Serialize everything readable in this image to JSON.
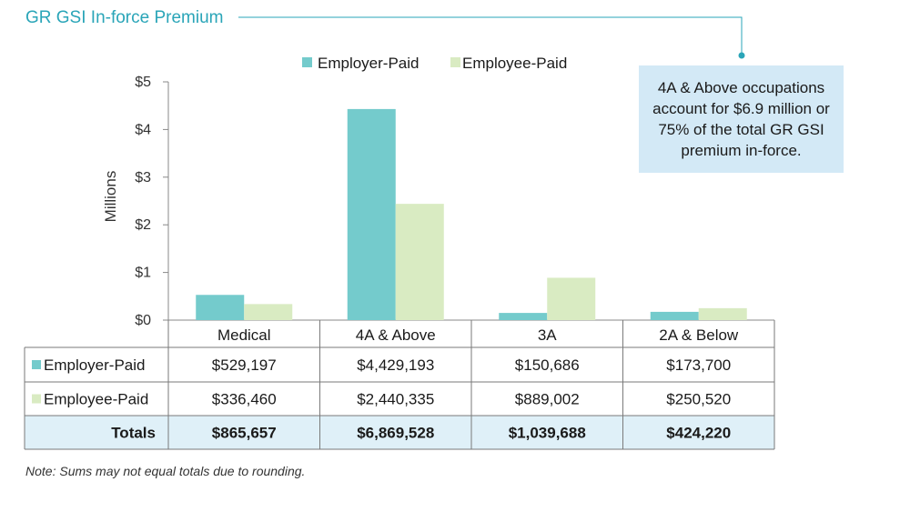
{
  "colors": {
    "employer": "#74cbcc",
    "employee": "#d9ebc2",
    "title": "#2aa5b8",
    "totals_row": "#dff0f8",
    "callout": "#d3e9f6"
  },
  "callout": {
    "text": "4A & Above occupations account for $6.9 million or 75% of the total GR GSI premium in-force."
  },
  "table": {
    "rows": [
      {
        "label": "Employer-Paid",
        "values": [
          "$529,197",
          "$4,429,193",
          "$150,686",
          "$173,700"
        ]
      },
      {
        "label": "Employee-Paid",
        "values": [
          "$336,460",
          "$2,440,335",
          "$889,002",
          "$250,520"
        ]
      }
    ],
    "totals": {
      "label": "Totals",
      "values": [
        "$865,657",
        "$6,869,528",
        "$1,039,688",
        "$424,220"
      ]
    }
  },
  "note": "Note: Sums may not equal totals due to rounding.",
  "chart_data": {
    "type": "bar",
    "title": "GR GSI In-force Premium",
    "ylabel": "Millions",
    "xlabel": "",
    "categories": [
      "Medical",
      "4A & Above",
      "3A",
      "2A & Below"
    ],
    "series": [
      {
        "name": "Employer-Paid",
        "values": [
          0.529197,
          4.429193,
          0.150686,
          0.1737
        ]
      },
      {
        "name": "Employee-Paid",
        "values": [
          0.33646,
          2.440335,
          0.889002,
          0.25052
        ]
      }
    ],
    "ylim": [
      0,
      5
    ],
    "yticks": [
      0,
      1,
      2,
      3,
      4,
      5
    ],
    "ytick_labels": [
      "$0",
      "$1",
      "$2",
      "$3",
      "$4",
      "$5"
    ],
    "legend": "top-center",
    "grid": false
  }
}
